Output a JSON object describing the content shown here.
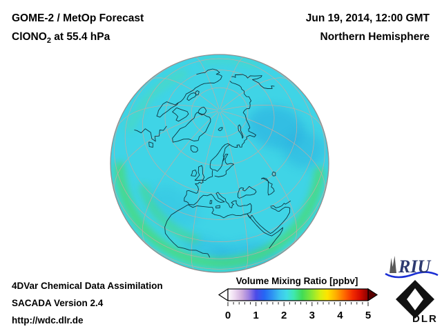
{
  "header": {
    "title_line1": "GOME-2 / MetOp Forecast",
    "species_prefix": "ClONO",
    "species_sub": "2",
    "species_suffix": " at 55.4 hPa",
    "datetime": "Jun 19, 2014, 12:00 GMT",
    "hemisphere": "Northern Hemisphere"
  },
  "footer": {
    "line1": "4DVar Chemical Data Assimilation",
    "line2": "SACADA Version 2.4",
    "line3": "http://wdc.dlr.de"
  },
  "colorbar": {
    "title": "Volume Mixing Ratio [ppbv]",
    "tick_labels": [
      "0",
      "1",
      "2",
      "3",
      "4",
      "5"
    ],
    "min": 0,
    "max": 5,
    "minor_per_major": 5,
    "gradient_stops": [
      {
        "at": 0.0,
        "color": "#ffffff"
      },
      {
        "at": 0.05,
        "color": "#ecd7f0"
      },
      {
        "at": 0.1,
        "color": "#cfaede"
      },
      {
        "at": 0.15,
        "color": "#9d7fe0"
      },
      {
        "at": 0.2,
        "color": "#4b4ae8"
      },
      {
        "at": 0.26,
        "color": "#2566f4"
      },
      {
        "at": 0.32,
        "color": "#2f97f2"
      },
      {
        "at": 0.37,
        "color": "#3cc3ef"
      },
      {
        "at": 0.42,
        "color": "#40dce6"
      },
      {
        "at": 0.47,
        "color": "#3fe8af"
      },
      {
        "at": 0.53,
        "color": "#41dc55"
      },
      {
        "at": 0.6,
        "color": "#8ce832"
      },
      {
        "at": 0.66,
        "color": "#d8ef12"
      },
      {
        "at": 0.71,
        "color": "#ffe400"
      },
      {
        "at": 0.77,
        "color": "#ffae00"
      },
      {
        "at": 0.83,
        "color": "#ff6a00"
      },
      {
        "at": 0.89,
        "color": "#f22b00"
      },
      {
        "at": 0.94,
        "color": "#d60d00"
      },
      {
        "at": 1.0,
        "color": "#8a0000"
      }
    ],
    "under_arrow_color": "#ffffff",
    "over_arrow_color": "#5a0000"
  },
  "globe": {
    "projection": "orthographic",
    "center_lat_deg": 61,
    "center_lon_deg": 15,
    "grid_lat_step_deg": 15,
    "grid_lon_step_deg": 30,
    "colors": {
      "base": "#3fd4e6",
      "low_patch": "#27a8e0",
      "enhanced_band": "#49dc6e",
      "enhanced_soft": "#55dfa0",
      "graticule": "#c9aba1",
      "coastline": "#0d3340",
      "limb": "#8f8f8f"
    },
    "approx_field_values_ppbv": {
      "background": 2.0,
      "low_patches": 1.5,
      "enhanced_subtropical_band": 2.6
    }
  },
  "logos": {
    "riu_text": "RIU",
    "dlr_text": "DLR"
  }
}
